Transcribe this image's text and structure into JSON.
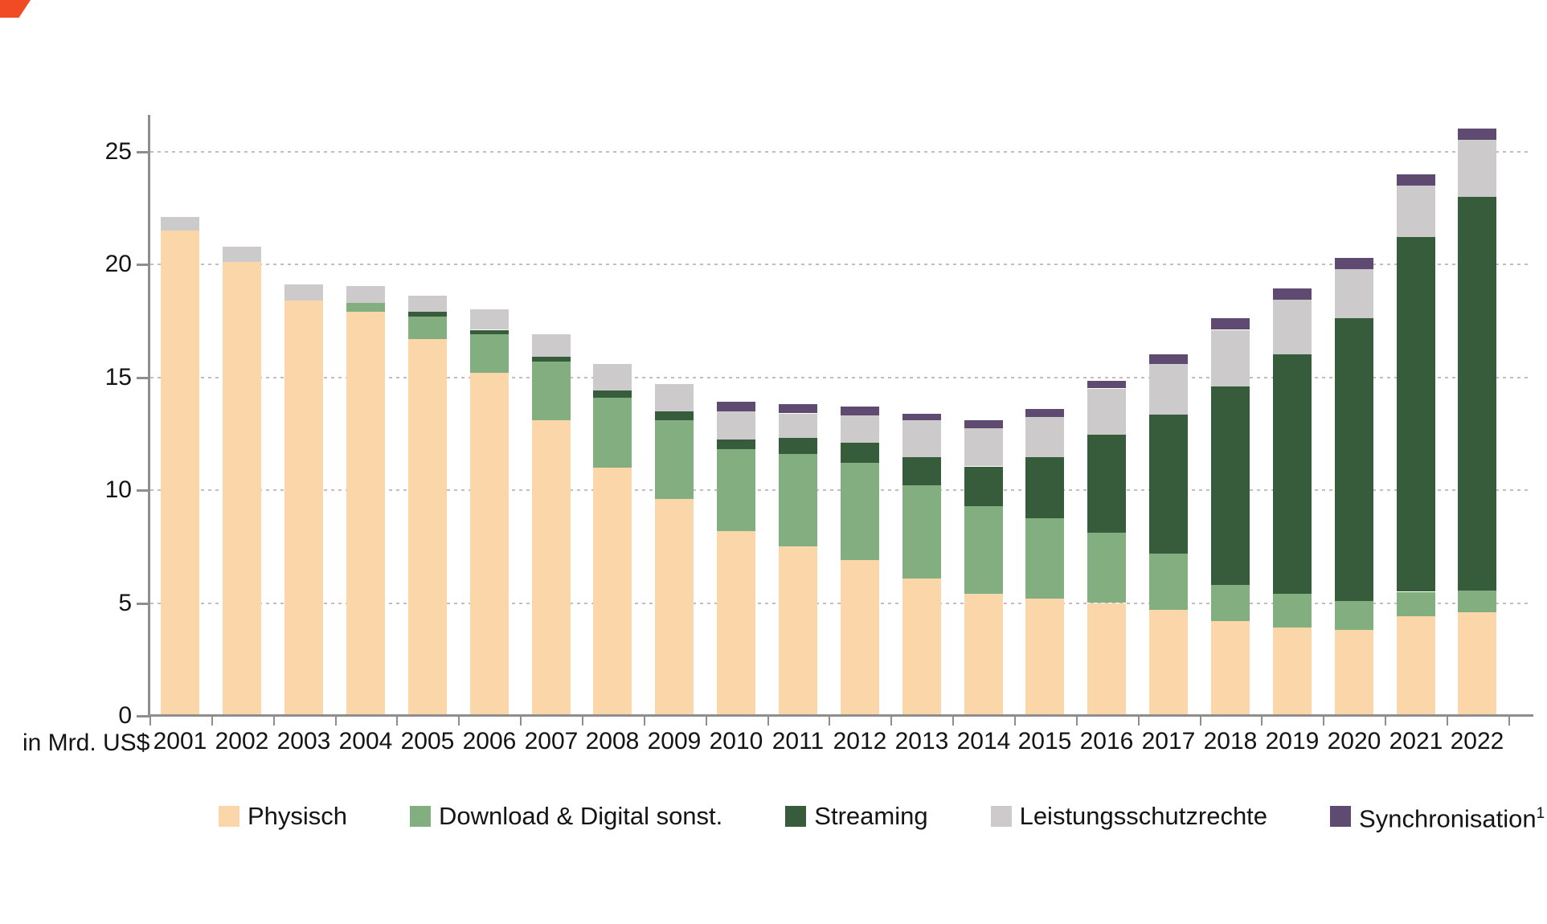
{
  "unit_label": "in Mrd. US$",
  "y_axis": {
    "tick_labels": [
      "0",
      "5",
      "10",
      "15",
      "20",
      "25"
    ]
  },
  "chart_data": {
    "type": "bar",
    "stacked": true,
    "title": "",
    "xlabel": "",
    "ylabel": "in Mrd. US$",
    "ylim": [
      0,
      26.5
    ],
    "yticks": [
      0,
      5,
      10,
      15,
      20,
      25
    ],
    "grid": "horizontal-dotted",
    "legend_position": "bottom",
    "categories": [
      "2001",
      "2002",
      "2003",
      "2004",
      "2005",
      "2006",
      "2007",
      "2008",
      "2009",
      "2010",
      "2011",
      "2012",
      "2013",
      "2014",
      "2015",
      "2016",
      "2017",
      "2018",
      "2019",
      "2020",
      "2021",
      "2022"
    ],
    "series": [
      {
        "name": "Physisch",
        "color": "#fad6a8",
        "values": [
          21.5,
          20.1,
          18.4,
          17.9,
          16.7,
          15.2,
          13.1,
          11.0,
          9.6,
          8.2,
          7.5,
          6.9,
          6.1,
          5.4,
          5.2,
          5.0,
          4.7,
          4.2,
          3.9,
          3.8,
          4.4,
          4.6
        ]
      },
      {
        "name": "Download & Digital sonst.",
        "color": "#82ae80",
        "values": [
          0,
          0,
          0,
          0.4,
          1.0,
          1.7,
          2.6,
          3.1,
          3.5,
          3.6,
          4.1,
          4.3,
          4.1,
          3.9,
          3.55,
          3.1,
          2.5,
          1.6,
          1.5,
          1.3,
          1.1,
          0.95
        ]
      },
      {
        "name": "Streaming",
        "color": "#365c3c",
        "values": [
          0,
          0,
          0,
          0,
          0.2,
          0.2,
          0.2,
          0.3,
          0.4,
          0.45,
          0.7,
          0.9,
          1.25,
          1.75,
          2.7,
          4.35,
          6.15,
          8.8,
          10.6,
          12.5,
          15.7,
          17.45
        ]
      },
      {
        "name": "Leistungsschutzrechte",
        "color": "#cccaca",
        "values": [
          0.6,
          0.7,
          0.7,
          0.75,
          0.7,
          0.9,
          1.0,
          1.2,
          1.2,
          1.25,
          1.1,
          1.2,
          1.65,
          1.7,
          1.8,
          2.05,
          2.25,
          2.5,
          2.45,
          2.2,
          2.3,
          2.5
        ]
      },
      {
        "name": "Synchronisation",
        "legend_superscript": "1",
        "color": "#5f4b71",
        "values": [
          0,
          0,
          0,
          0,
          0,
          0,
          0,
          0,
          0,
          0.4,
          0.4,
          0.4,
          0.3,
          0.35,
          0.35,
          0.35,
          0.4,
          0.5,
          0.5,
          0.5,
          0.5,
          0.5
        ]
      }
    ]
  }
}
